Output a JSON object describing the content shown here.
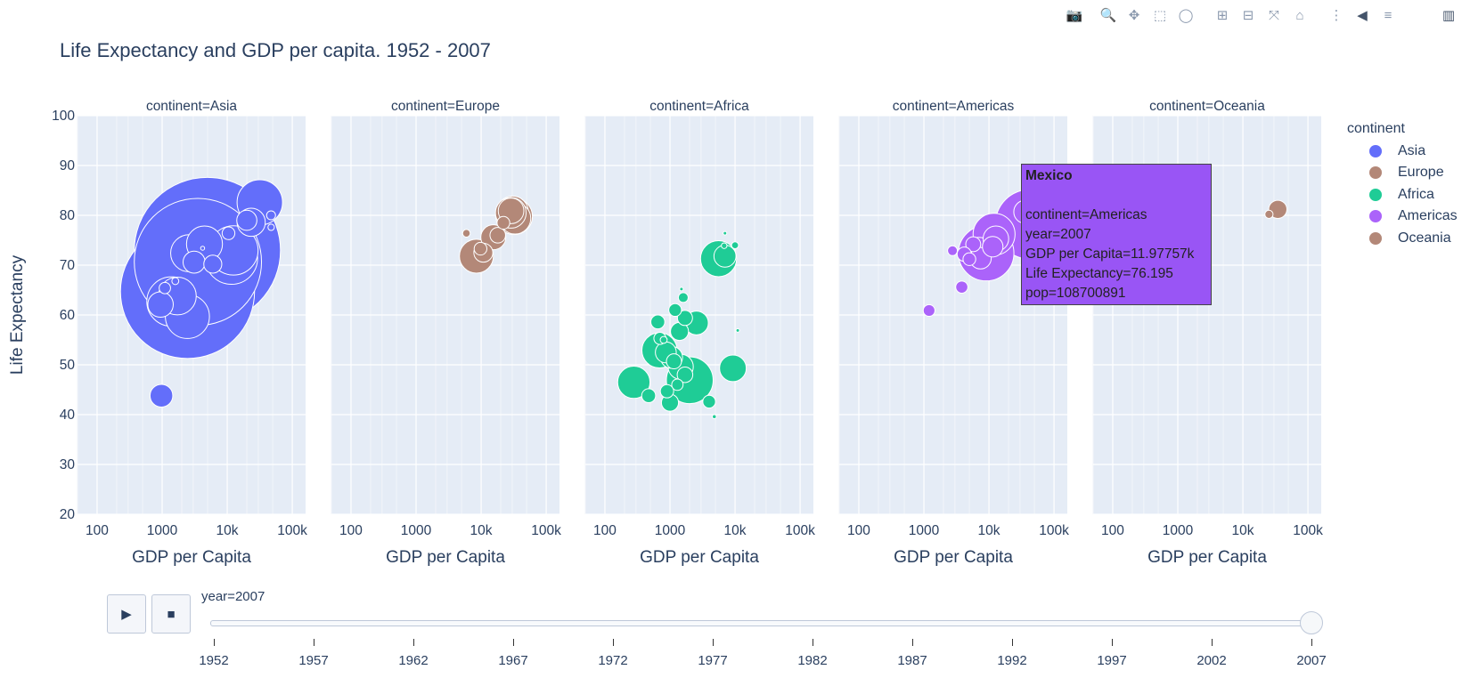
{
  "modebar": {
    "buttons": [
      {
        "name": "camera-icon",
        "glyph": "📷"
      },
      {
        "name": "zoom-icon",
        "glyph": "🔍"
      },
      {
        "name": "pan-icon",
        "glyph": "✥"
      },
      {
        "name": "box-select-icon",
        "glyph": "⬚"
      },
      {
        "name": "lasso-select-icon",
        "glyph": "◯"
      },
      {
        "name": "zoom-in-icon",
        "glyph": "⊞"
      },
      {
        "name": "zoom-out-icon",
        "glyph": "⊟"
      },
      {
        "name": "autoscale-icon",
        "glyph": "⤧"
      },
      {
        "name": "reset-axes-icon",
        "glyph": "⌂"
      },
      {
        "name": "spike-lines-icon",
        "glyph": "⋮"
      },
      {
        "name": "hover-closest-icon",
        "glyph": "◀"
      },
      {
        "name": "hover-compare-icon",
        "glyph": "≡"
      },
      {
        "name": "plotly-logo-icon",
        "glyph": "▥"
      }
    ]
  },
  "chart_data": {
    "type": "scatter",
    "title": "Life Expectancy and GDP per capita. 1952 - 2007",
    "xlabel": "GDP per Capita",
    "ylabel": "Life Expectancy",
    "x_scale": "log",
    "xlim": [
      50,
      160000
    ],
    "ylim": [
      20,
      100
    ],
    "x_ticks": [
      100,
      1000,
      10000,
      100000
    ],
    "x_tick_labels": [
      "100",
      "1000",
      "10k",
      "100k"
    ],
    "y_ticks": [
      20,
      30,
      40,
      50,
      60,
      70,
      80,
      90,
      100
    ],
    "grid": true,
    "legend_title": "continent",
    "legend_position": "right",
    "year": 2007,
    "facets": [
      {
        "label": "continent=Asia",
        "name": "Asia",
        "color": "#636efa",
        "points": [
          [
            4959,
            72.96,
            1318683096
          ],
          [
            2452,
            64.7,
            1110396331
          ],
          [
            3541,
            70.65,
            1000000000
          ],
          [
            31656,
            82.6,
            127467972
          ],
          [
            12452,
            72.96,
            150000000
          ],
          [
            4470,
            74.25,
            80000000
          ],
          [
            2605,
            72.4,
            85262356
          ],
          [
            11606,
            71.4,
            169270617
          ],
          [
            1391,
            62.7,
            150448339
          ],
          [
            1713,
            63.8,
            88000000
          ],
          [
            2442,
            59.7,
            120000000
          ],
          [
            23348,
            78.6,
            49044790
          ],
          [
            20000,
            79.0,
            25000000
          ],
          [
            3096,
            70.6,
            30000000
          ],
          [
            47143,
            80.0,
            5000000
          ],
          [
            47306,
            77.6,
            2505559
          ],
          [
            944,
            62.1,
            40000000
          ],
          [
            974,
            43.8,
            31889923
          ],
          [
            1100,
            65.4,
            8000000
          ],
          [
            1593,
            66.8,
            3000000
          ],
          [
            4185,
            73.4,
            1000000
          ],
          [
            6000,
            70.2,
            20000000
          ],
          [
            10461,
            76.4,
            10000000
          ]
        ]
      },
      {
        "label": "continent=Europe",
        "name": "Europe",
        "color": "#b38878",
        "points": [
          [
            32170,
            79.8,
            82400996
          ],
          [
            30470,
            80.7,
            61083916
          ],
          [
            28569,
            80.5,
            58147733
          ],
          [
            33203,
            79.4,
            60776238
          ],
          [
            28821,
            80.9,
            40448191
          ],
          [
            8458,
            71.8,
            71158647
          ],
          [
            15390,
            75.6,
            38518241
          ],
          [
            10808,
            72.5,
            22276056
          ],
          [
            9786,
            73.3,
            10000000
          ],
          [
            18000,
            76.0,
            15000000
          ],
          [
            5937,
            76.4,
            3600000
          ],
          [
            22000,
            78.5,
            10000000
          ]
        ]
      },
      {
        "label": "continent=Africa",
        "name": "Africa",
        "color": "#1fcc96",
        "points": [
          [
            2014,
            46.9,
            135031164
          ],
          [
            278,
            46.5,
            64606759
          ],
          [
            690,
            52.9,
            76511887
          ],
          [
            9270,
            49.3,
            43997828
          ],
          [
            5581,
            71.3,
            80264543
          ],
          [
            1463,
            49.6,
            39000000
          ],
          [
            1057,
            51.5,
            30000000
          ],
          [
            863,
            52.5,
            27000000
          ],
          [
            2550,
            58.4,
            35000000
          ],
          [
            7000,
            71.8,
            30000000
          ],
          [
            1400,
            56.7,
            20000000
          ],
          [
            1000,
            42.4,
            18000000
          ],
          [
            650,
            58.6,
            12000000
          ],
          [
            1200,
            61.0,
            10000000
          ],
          [
            4000,
            42.6,
            10000000
          ],
          [
            470,
            43.8,
            12000000
          ],
          [
            1700,
            48.0,
            15000000
          ],
          [
            700,
            55.3,
            9000000
          ],
          [
            1600,
            63.5,
            6000000
          ],
          [
            1300,
            46.0,
            8000000
          ],
          [
            10000,
            74.0,
            3000000
          ],
          [
            6800,
            73.9,
            2000000
          ],
          [
            4800,
            39.6,
            1000000
          ],
          [
            11000,
            56.9,
            500000
          ],
          [
            7000,
            76.4,
            400000
          ],
          [
            1500,
            65.2,
            300000
          ],
          [
            800,
            55.0,
            3000000
          ],
          [
            1150,
            50.7,
            14000000
          ],
          [
            1700,
            59.4,
            14000000
          ],
          [
            900,
            44.7,
            11000000
          ]
        ]
      },
      {
        "label": "continent=Americas",
        "name": "Americas",
        "color": "#ab63fa",
        "points": [
          [
            42952,
            78.2,
            301139947
          ],
          [
            9066,
            72.4,
            190010647
          ],
          [
            11978,
            76.2,
            108700891
          ],
          [
            7007,
            72.9,
            44227550
          ],
          [
            12779,
            75.3,
            40301927
          ],
          [
            36319,
            80.7,
            33390141
          ],
          [
            7409,
            71.4,
            28674757
          ],
          [
            11416,
            73.7,
            26084662
          ],
          [
            5728,
            74.2,
            13755680
          ],
          [
            4172,
            72.2,
            12572928
          ],
          [
            1202,
            60.9,
            8502814
          ],
          [
            3822,
            65.6,
            9119152
          ],
          [
            2750,
            72.9,
            6000000
          ],
          [
            5000,
            71.2,
            10000000
          ]
        ]
      },
      {
        "label": "continent=Oceania",
        "name": "Oceania",
        "color": "#b38878",
        "points": [
          [
            34435,
            81.2,
            20434176
          ],
          [
            25185,
            80.2,
            4115771
          ]
        ]
      }
    ],
    "hover": {
      "name": "Mexico",
      "lines": [
        "continent=Americas",
        "year=2007",
        "GDP per Capita=11.97757k",
        "Life Expectancy=76.195",
        "pop=108700891"
      ]
    }
  },
  "legend": {
    "items": [
      {
        "name": "Asia",
        "color": "#636efa"
      },
      {
        "name": "Europe",
        "color": "#b38878"
      },
      {
        "name": "Africa",
        "color": "#1fcc96"
      },
      {
        "name": "Americas",
        "color": "#ab63fa"
      },
      {
        "name": "Oceania",
        "color": "#b38878"
      }
    ]
  },
  "controls": {
    "play_glyph": "▶",
    "stop_glyph": "■"
  },
  "slider": {
    "current_label": "year=2007",
    "steps": [
      "1952",
      "1957",
      "1962",
      "1967",
      "1972",
      "1977",
      "1982",
      "1987",
      "1992",
      "1997",
      "2002",
      "2007"
    ],
    "value": "2007"
  }
}
